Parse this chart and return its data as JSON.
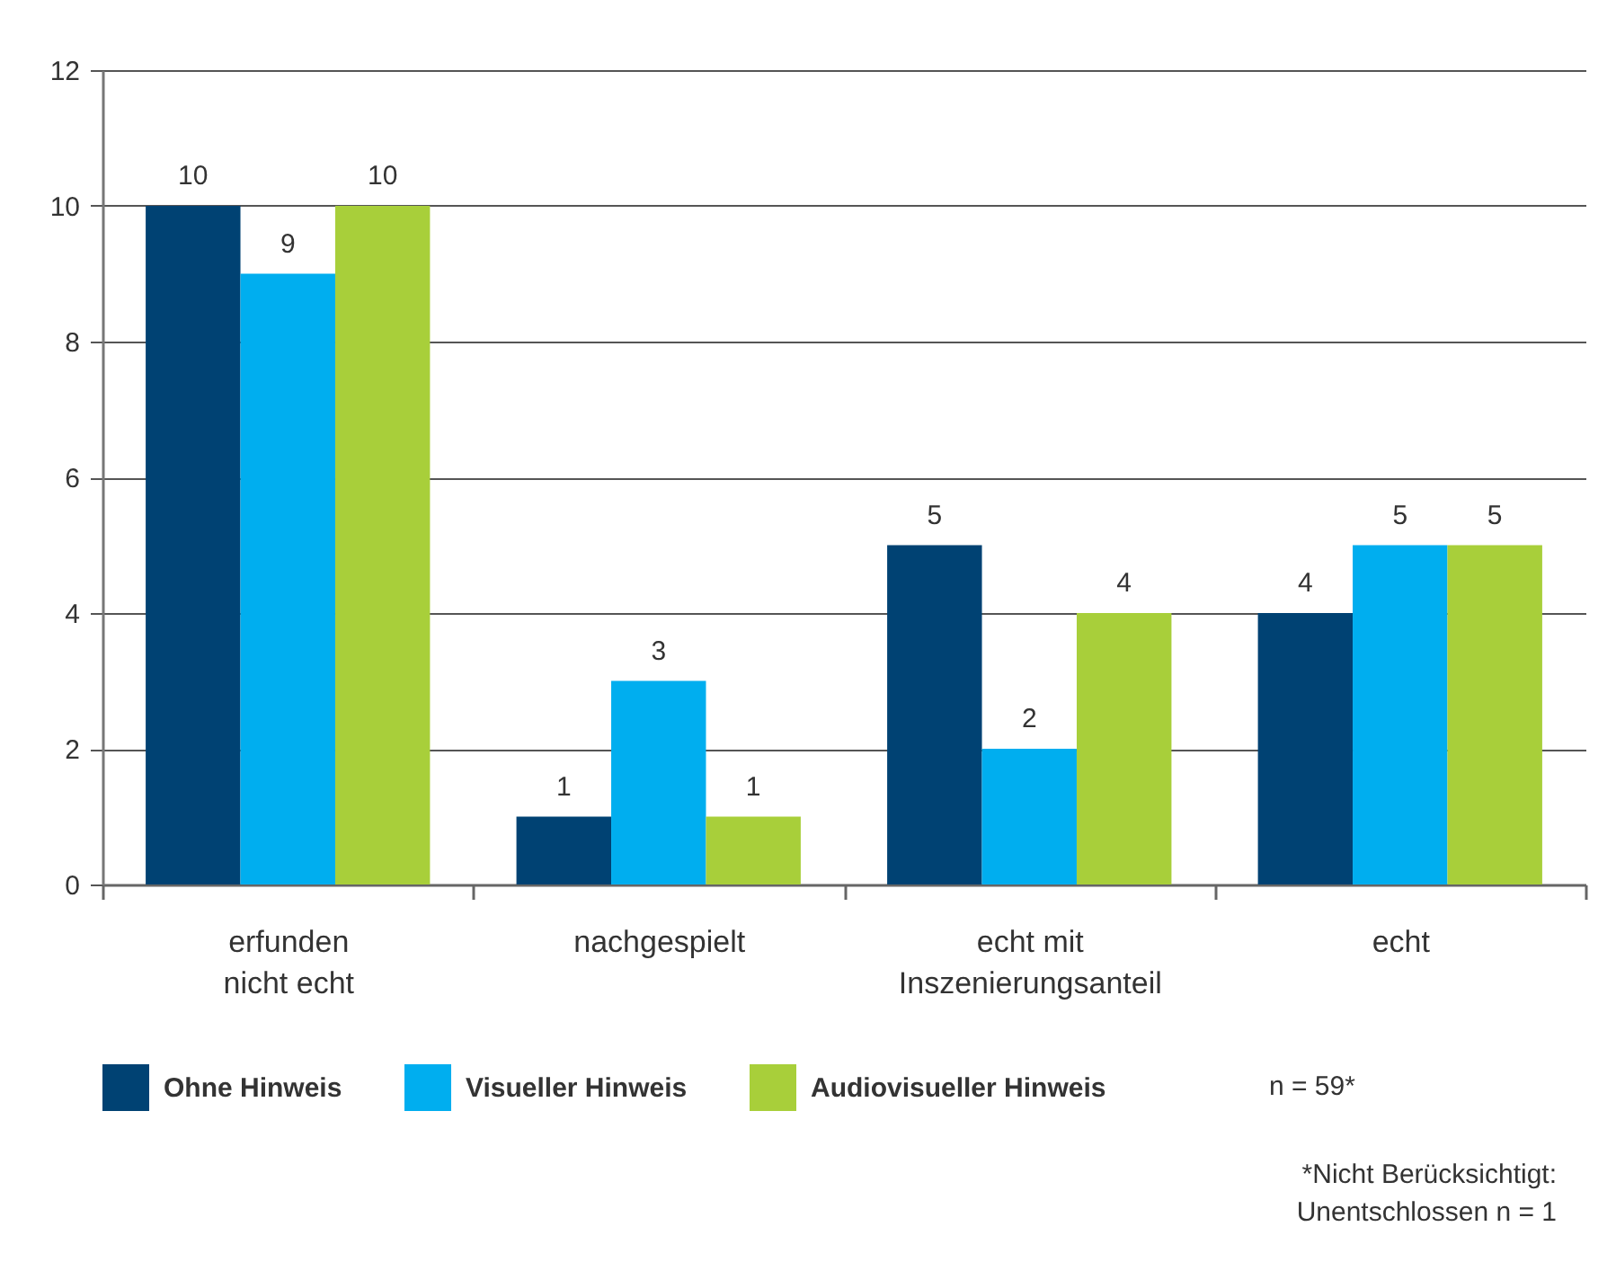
{
  "chart_data": {
    "type": "bar",
    "categories": [
      "erfunden\nnicht echt",
      "nachgespielt",
      "echt mit\nInszenierungsanteil",
      "echt"
    ],
    "series": [
      {
        "name": "Ohne Hinweis",
        "color": "#004273",
        "values": [
          10,
          1,
          5,
          4
        ]
      },
      {
        "name": "Visueller Hinweis",
        "color": "#00aeef",
        "values": [
          9,
          3,
          2,
          5
        ]
      },
      {
        "name": "Audiovisueller Hinweis",
        "color": "#a8cf3a",
        "values": [
          10,
          1,
          4,
          5
        ]
      }
    ],
    "ylim": [
      0,
      12
    ],
    "yticks": [
      0,
      2,
      4,
      6,
      8,
      10,
      12
    ],
    "grid": "y",
    "legend": "bottom",
    "data_labels": true,
    "annotations": [
      "n = 59*",
      "*Nicht Berücksichtigt:\nUnentschlossen n = 1"
    ]
  }
}
